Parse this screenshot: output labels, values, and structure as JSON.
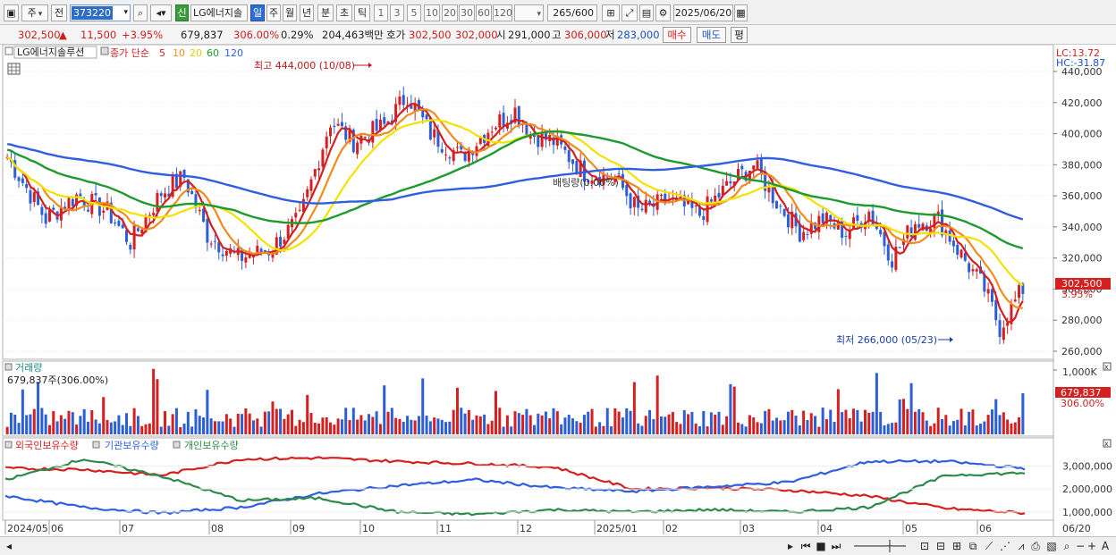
{
  "toolbar": {
    "market_select": "주",
    "prev_label": "전",
    "stock_code": "373220",
    "new_badge": "신",
    "stock_name": "LG에너지솔",
    "periods": [
      "일",
      "주",
      "월",
      "년",
      "분",
      "초",
      "틱"
    ],
    "active_period": "일",
    "intervals": [
      "1",
      "3",
      "5",
      "10",
      "20",
      "30",
      "60",
      "120"
    ],
    "count_display": "265/600",
    "date": "2025/06/20"
  },
  "quote": {
    "price": "302,500",
    "change_arrow": "▲",
    "change": "11,500",
    "change_pct": "+3.95%",
    "volume": "679,837",
    "volume_ratio": "306.00%",
    "turnover_pct": "0.29%",
    "amount": "204,463백만",
    "bid_label": "호가",
    "bid1": "302,500",
    "bid2": "302,000",
    "open_label": "시",
    "open": "291,000",
    "high_label": "고",
    "high": "306,000",
    "low_label": "저",
    "low": "283,000",
    "buy_label": "매수",
    "sell_label": "매도",
    "eval_label": "평"
  },
  "price_panel": {
    "stock_tab": "LG에너지솔루션",
    "ma_title": "종가 단순",
    "ma_periods": [
      "5",
      "10",
      "20",
      "60",
      "120"
    ],
    "ma_colors": [
      "#d42020",
      "#f08c1e",
      "#f2e200",
      "#1e9a2e",
      "#2f5fe0"
    ],
    "lc_label": "LC:13.72",
    "hc_label": "HC:-31.87",
    "high_annotation": "최고 444,000 (10/08)",
    "low_annotation": "최저 266,000 (05/23)",
    "match_label": "배팅량(0.00%)",
    "price_tag": "302,500",
    "pct_tag": "3.95%",
    "y_axis": [
      "440,000",
      "420,000",
      "400,000",
      "380,000",
      "360,000",
      "340,000",
      "320,000",
      "300,000",
      "280,000",
      "260,000"
    ]
  },
  "volume_panel": {
    "title": "거래량",
    "value": "679,837주(306.00%)",
    "axis_top": "1,000K",
    "tag_value": "679,837",
    "tag_pct": "306.00%"
  },
  "holdings_panel": {
    "legend": [
      "외국인보유수량",
      "기관보유수량",
      "개인보유수량"
    ],
    "colors": [
      "#d42020",
      "#2f5fe0",
      "#2e8a4a"
    ],
    "y_axis": [
      "3,000,000",
      "2,000,000",
      "1,000,000"
    ]
  },
  "x_axis": [
    "2024/05",
    "06",
    "07",
    "08",
    "09",
    "10",
    "11",
    "12",
    "2025/01",
    "02",
    "03",
    "04",
    "05",
    "06"
  ],
  "x_axis_right": "06/20",
  "chart_data": {
    "type": "line",
    "series": [
      {
        "name": "외국인보유수량",
        "values": [
          2900000,
          2850000,
          2600000,
          3300000,
          3350000,
          3200000,
          3100000,
          2950000,
          2000000,
          2050000,
          1950000,
          1700000,
          1150000,
          950000
        ]
      },
      {
        "name": "기관보유수량",
        "values": [
          1700000,
          1200000,
          950000,
          1200000,
          1800000,
          2150000,
          2400000,
          2050000,
          1900000,
          2100000,
          2300000,
          3200000,
          3200000,
          2900000
        ]
      },
      {
        "name": "개인보유수량",
        "values": [
          2400000,
          3300000,
          2550000,
          1500000,
          1600000,
          1000000,
          900000,
          1100000,
          1000000,
          1100000,
          1000000,
          1200000,
          2600000,
          2700000
        ]
      }
    ],
    "categories": [
      "2024/05",
      "06",
      "07",
      "08",
      "09",
      "10",
      "11",
      "12",
      "2025/01",
      "02",
      "03",
      "04",
      "05",
      "06"
    ]
  }
}
